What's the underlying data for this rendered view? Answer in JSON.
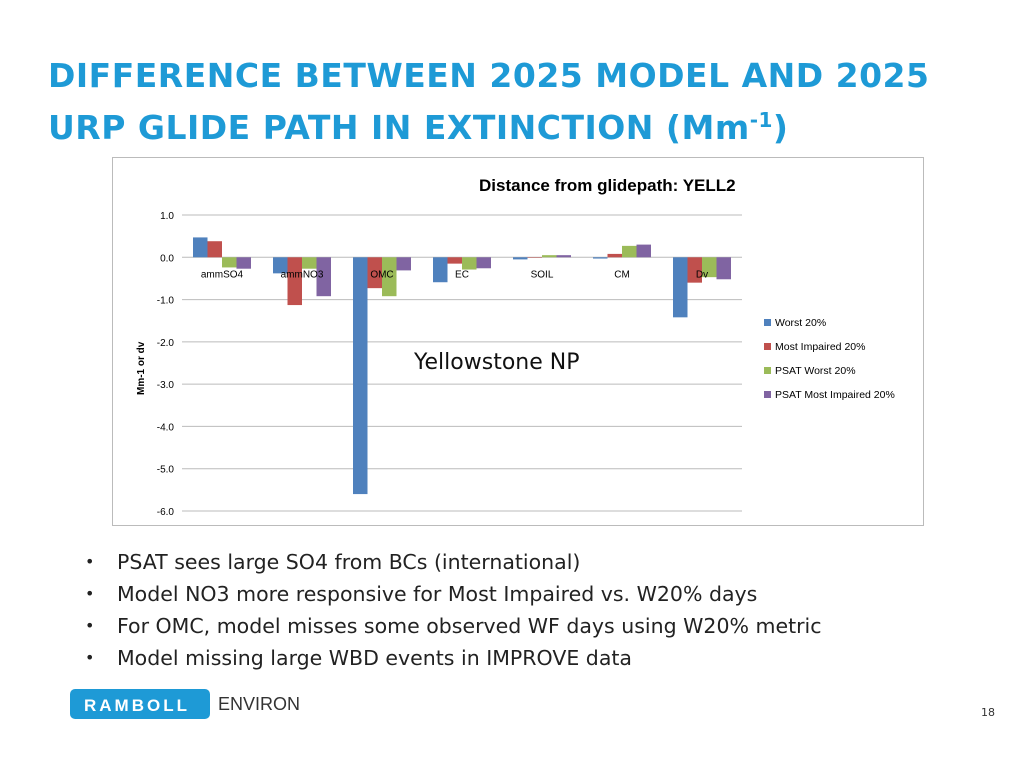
{
  "slide": {
    "title_line1": "DIFFERENCE BETWEEN 2025 MODEL AND 2025",
    "title_line2": "URP GLIDE PATH IN EXTINCTION (Mm",
    "title_sup": "-1",
    "title_end": ")",
    "page_number": "18",
    "bullets": [
      "PSAT sees large SO4 from BCs (international)",
      "Model NO3 more responsive for Most Impaired vs. W20% days",
      "For OMC, model misses some observed WF days using W20% metric",
      "Model missing large WBD events in IMPROVE data"
    ],
    "logo": {
      "brand": "RAMBOLL",
      "sub": "ENVIRON"
    }
  },
  "chart_data": {
    "type": "bar",
    "title": "Distance from glidepath: YELL2",
    "annotation": "Yellowstone NP",
    "ylabel": "Mm-1 or dv",
    "xlabel": "",
    "ylim": [
      -6.0,
      1.0
    ],
    "yticks": [
      "1.0",
      "0.0",
      "-1.0",
      "-2.0",
      "-3.0",
      "-4.0",
      "-5.0",
      "-6.0"
    ],
    "grid": true,
    "legend_position": "right",
    "categories": [
      "ammSO4",
      "ammNO3",
      "OMC",
      "EC",
      "SOIL",
      "CM",
      "Dv"
    ],
    "series": [
      {
        "name": "Worst 20%",
        "color": "#4f81bd",
        "values": [
          0.47,
          -0.38,
          -5.6,
          -0.59,
          -0.05,
          -0.03,
          -1.42
        ]
      },
      {
        "name": "Most Impaired 20%",
        "color": "#c0504d",
        "values": [
          0.38,
          -1.13,
          -0.73,
          -0.15,
          0.0,
          0.08,
          -0.6
        ]
      },
      {
        "name": "PSAT Worst 20%",
        "color": "#9bbb59",
        "values": [
          -0.24,
          -0.27,
          -0.92,
          -0.29,
          0.05,
          0.27,
          -0.47
        ]
      },
      {
        "name": "PSAT Most Impaired 20%",
        "color": "#8064a2",
        "values": [
          -0.27,
          -0.92,
          -0.31,
          -0.26,
          0.05,
          0.3,
          -0.52
        ]
      }
    ]
  }
}
